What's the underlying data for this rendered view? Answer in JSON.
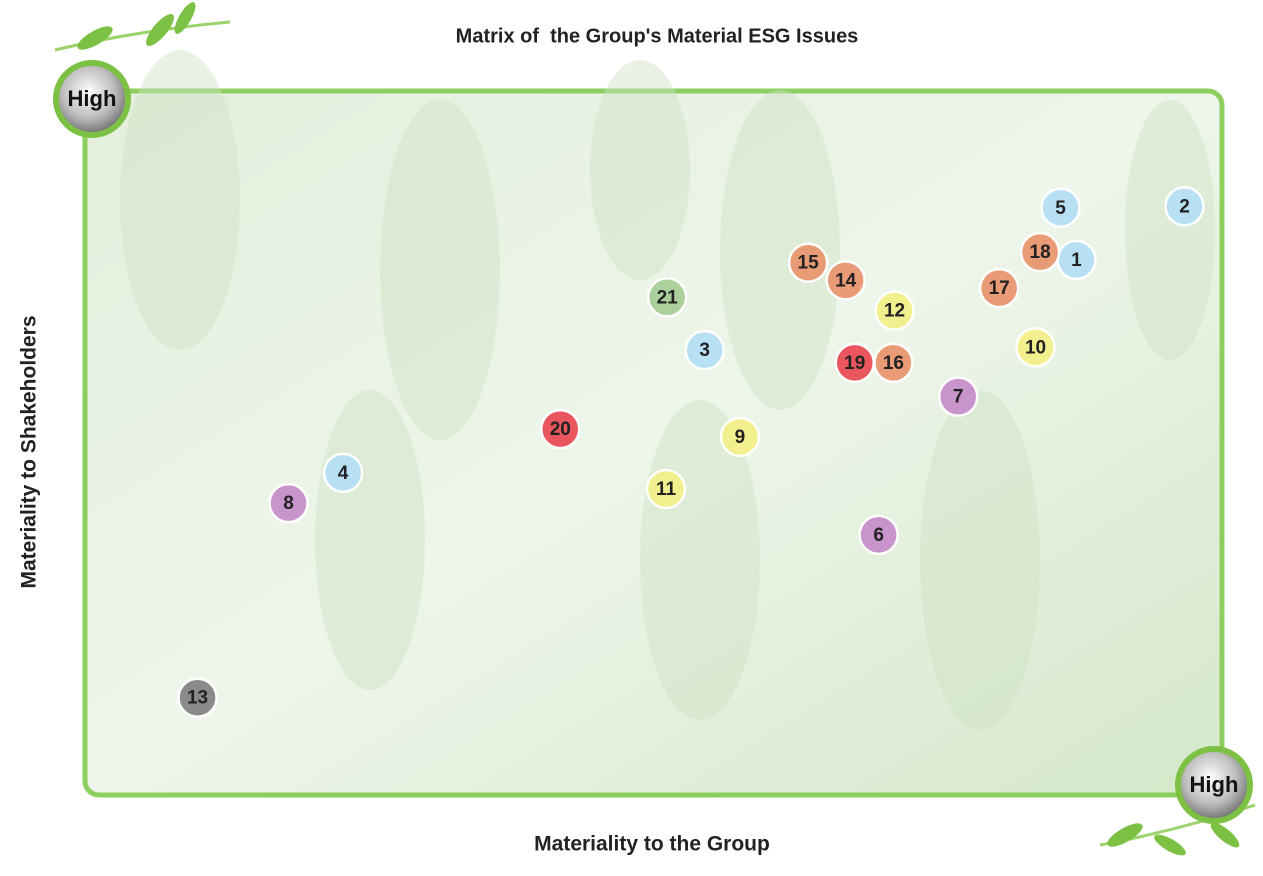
{
  "chart_data": {
    "type": "scatter",
    "title": "Matrix of  the Group's Material ESG Issues",
    "x_label": "Materiality to the Group",
    "y_label": "Materiality to Shakeholders",
    "x_high_label": "High",
    "y_high_label": "High",
    "xlim": [
      0,
      10
    ],
    "ylim": [
      0,
      10
    ],
    "labels": [
      "1",
      "2",
      "3",
      "4",
      "5",
      "6",
      "7",
      "8",
      "9",
      "10",
      "11",
      "12",
      "13",
      "14",
      "15",
      "16",
      "17",
      "18",
      "19",
      "20",
      "21"
    ],
    "x": [
      8.72,
      9.67,
      5.45,
      2.27,
      8.58,
      6.98,
      7.68,
      1.79,
      5.76,
      8.36,
      5.11,
      7.12,
      0.99,
      6.69,
      6.36,
      7.11,
      8.04,
      8.4,
      6.77,
      4.18,
      5.12
    ],
    "values": [
      7.59,
      8.35,
      6.31,
      4.57,
      8.33,
      3.69,
      5.65,
      4.14,
      5.08,
      6.35,
      4.34,
      6.87,
      1.38,
      7.3,
      7.55,
      6.13,
      7.19,
      7.7,
      6.13,
      5.19,
      7.06
    ],
    "colors": [
      "#b8e0f5",
      "#b8e0f5",
      "#b8e0f5",
      "#b8e0f5",
      "#b8e0f5",
      "#c993cc",
      "#c993cc",
      "#c993cc",
      "#f2f08e",
      "#f2f08e",
      "#f2f08e",
      "#f2f08e",
      "#8a8a8a",
      "#e89b74",
      "#e89b74",
      "#e89b74",
      "#e89b74",
      "#e89b74",
      "#e9565e",
      "#e9565e",
      "#abd09c"
    ]
  }
}
